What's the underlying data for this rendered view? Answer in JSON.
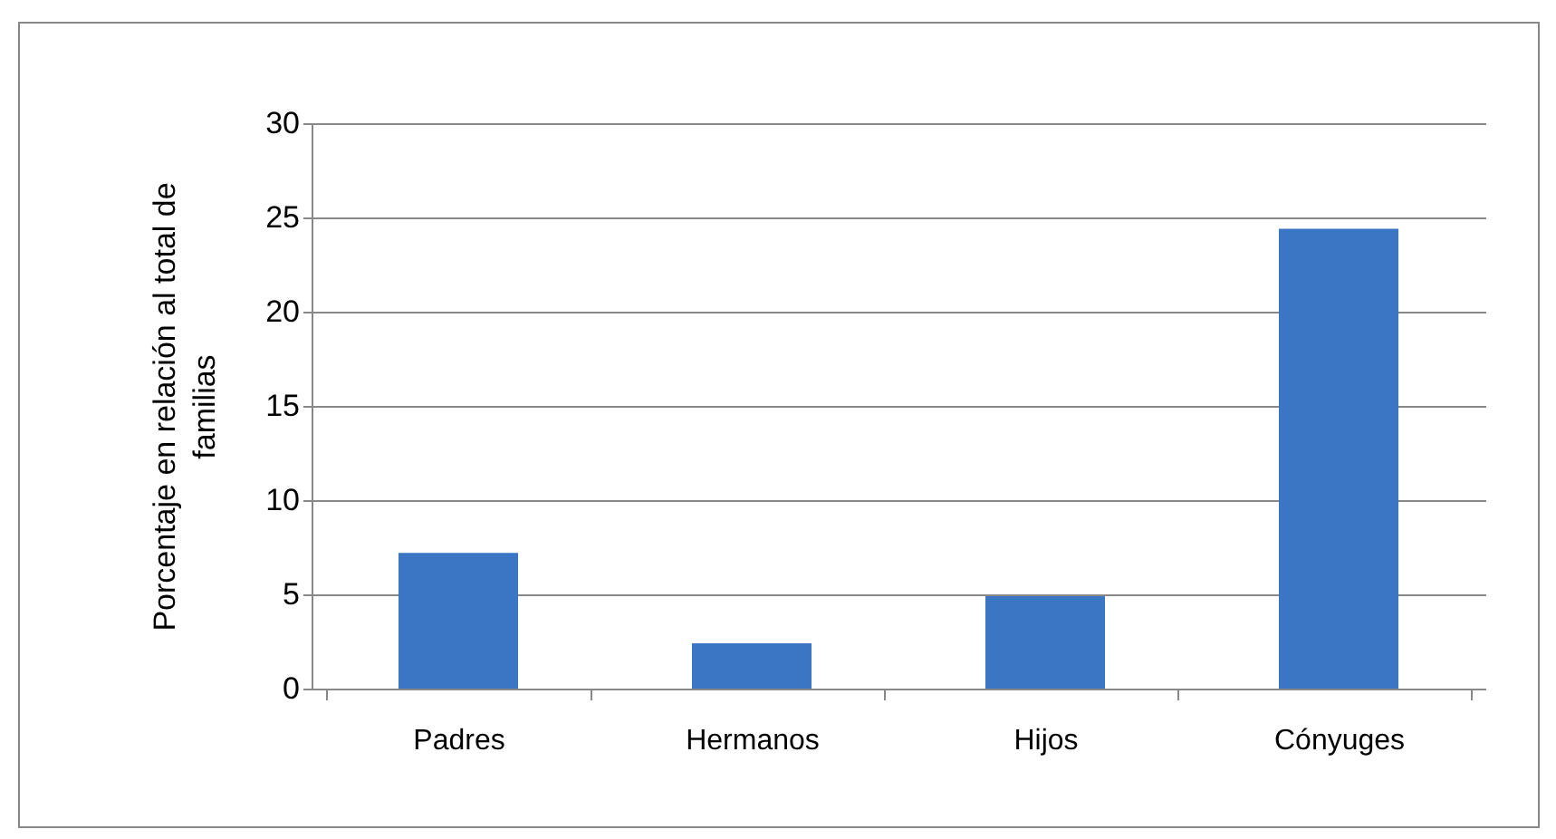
{
  "chart_data": {
    "type": "bar",
    "ylabel": "Porcentaje en relación al total de familias",
    "categories": [
      "Padres",
      "Hermanos",
      "Hijos",
      "Cónyuges"
    ],
    "values": [
      7.2,
      2.4,
      4.9,
      24.4
    ],
    "color": "#3a76c4",
    "ylim": [
      0,
      30
    ],
    "yticks": [
      0,
      5,
      10,
      15,
      20,
      25,
      30
    ],
    "grid": "y"
  }
}
